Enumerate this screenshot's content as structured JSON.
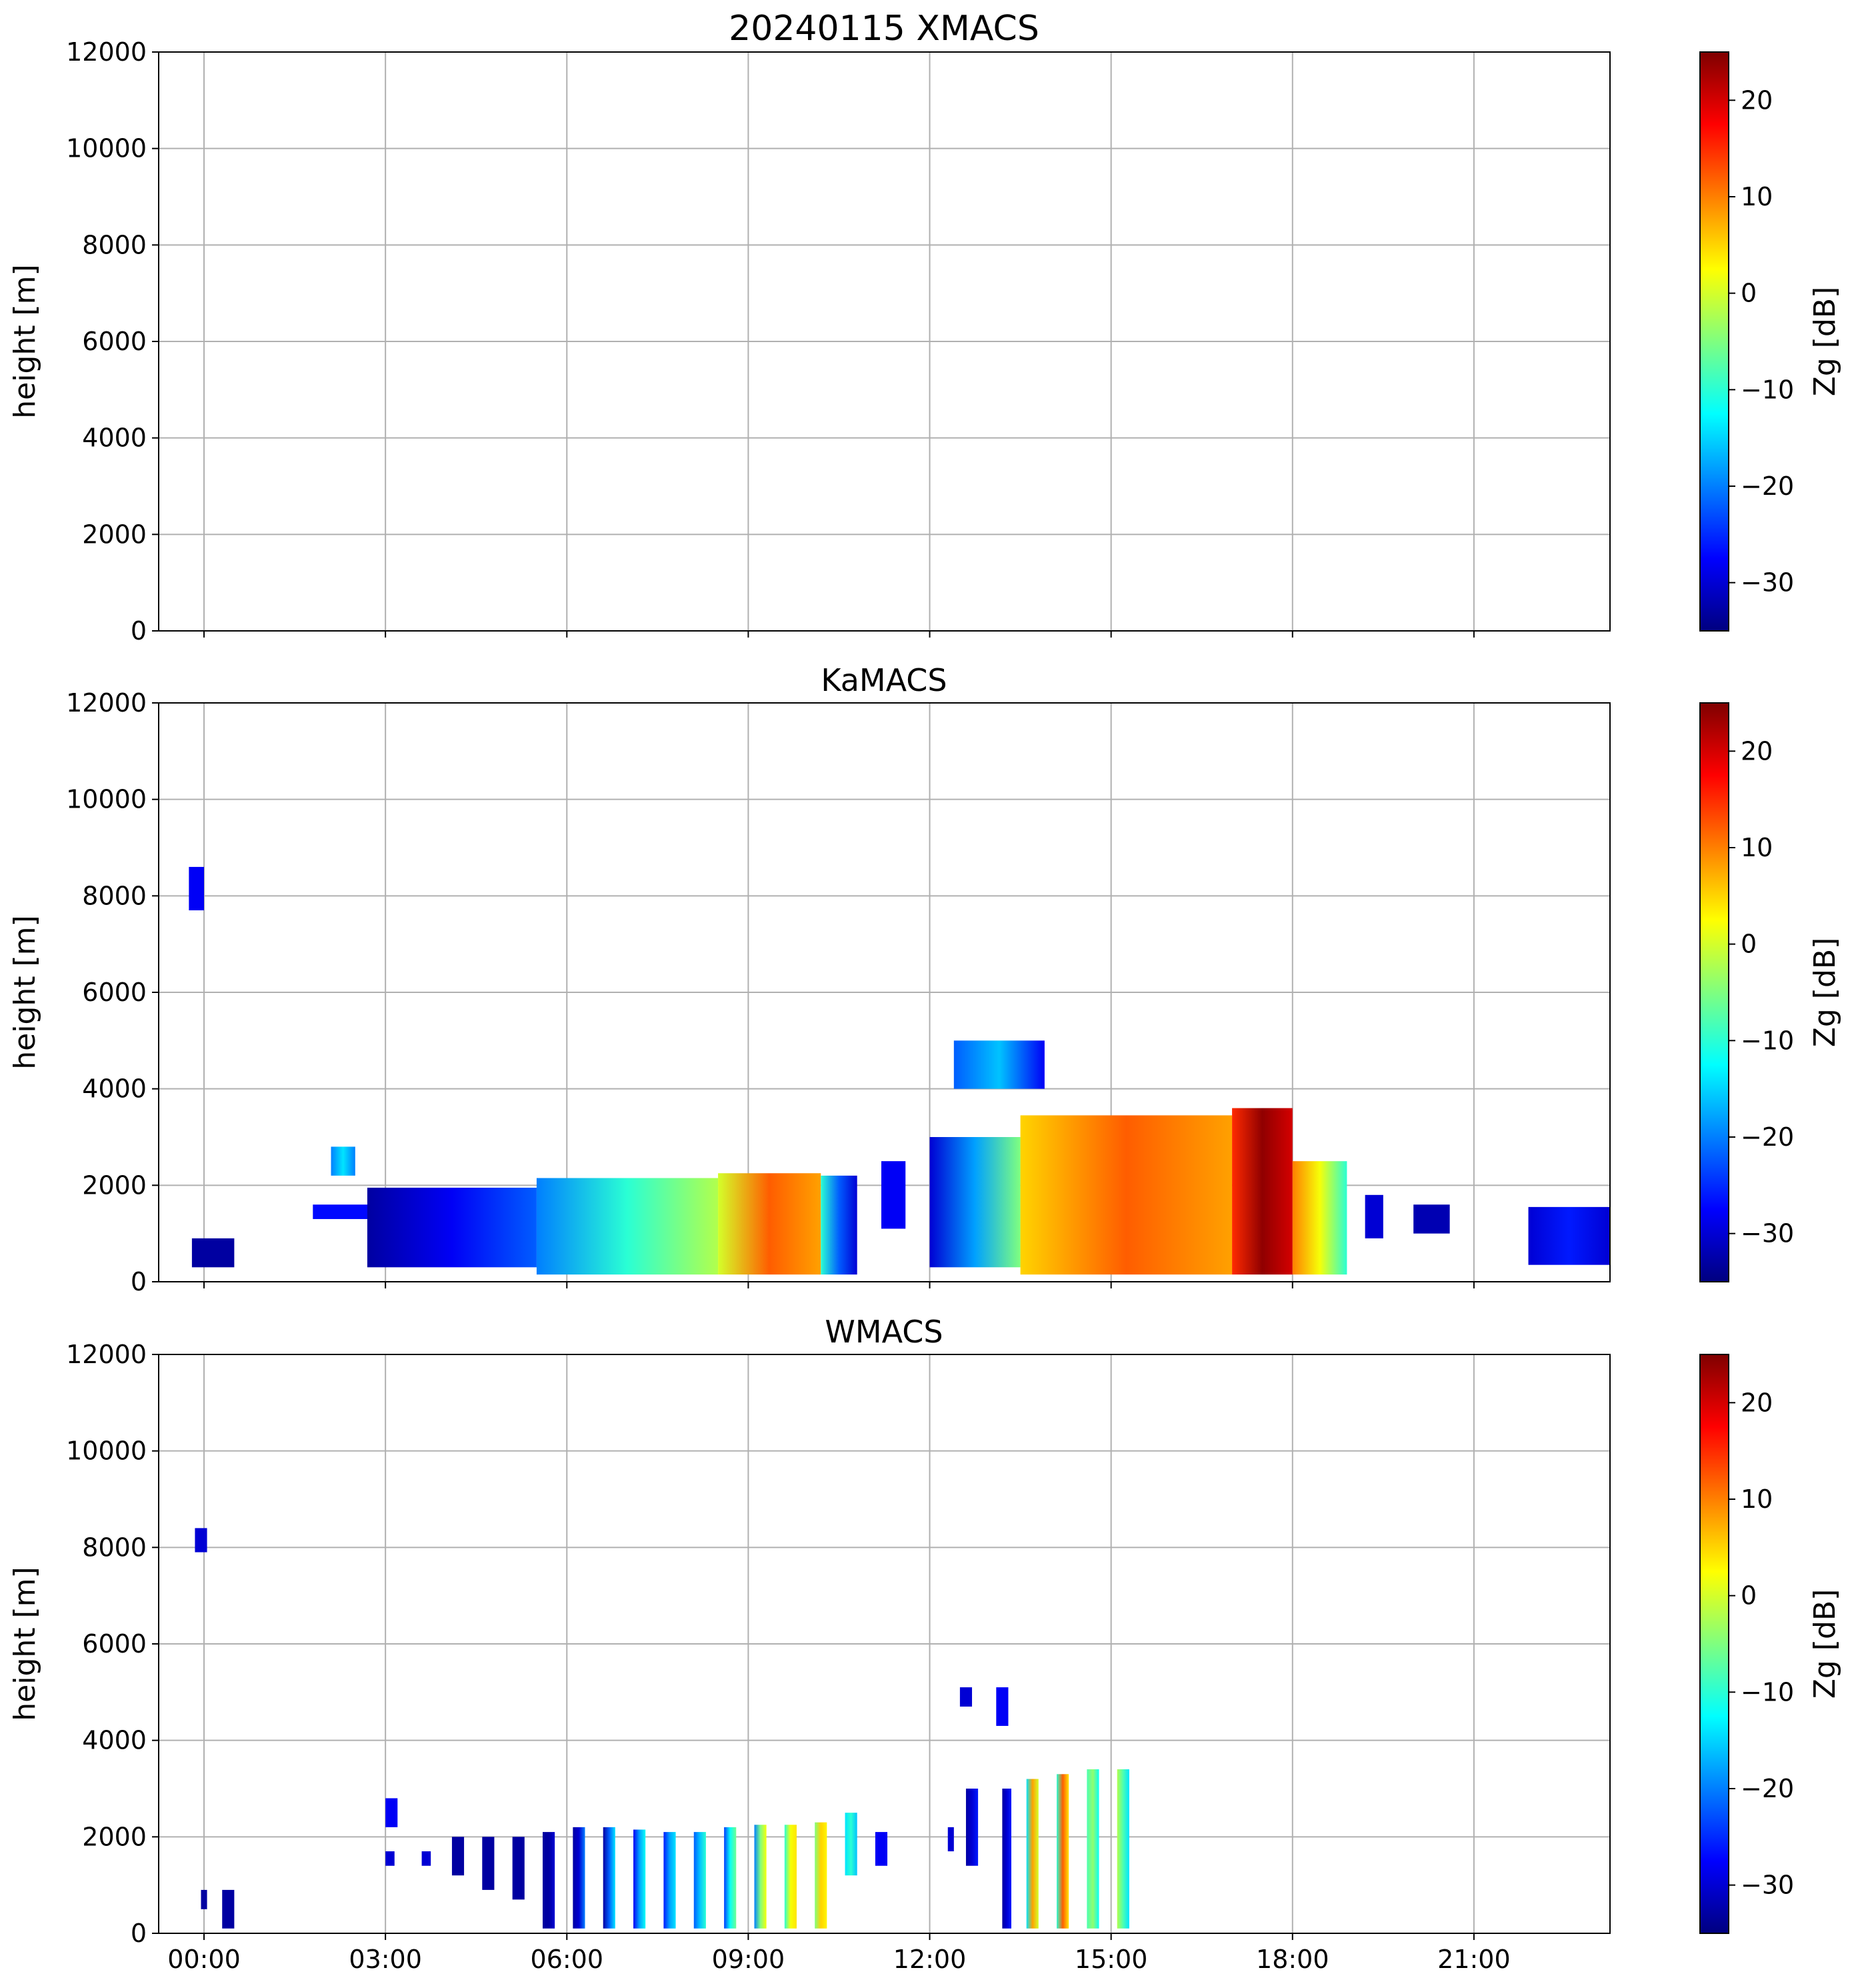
{
  "colors": {
    "jet": [
      "#00007f",
      "#0000ff",
      "#007fff",
      "#00ffff",
      "#7fff7f",
      "#ffff00",
      "#ff7f00",
      "#ff0000",
      "#7f0000"
    ],
    "grid": "#b0b0b0",
    "frame": "#000000"
  },
  "chart_data": [
    {
      "type": "heatmap",
      "title": "20240115 XMACS",
      "ylabel": "height [m]",
      "xlabel": "",
      "xlim_hours": [
        -0.75,
        23.25
      ],
      "ylim": [
        0,
        12000
      ],
      "yticks": [
        {
          "value": 0,
          "label": "0"
        },
        {
          "value": 2000,
          "label": "2000"
        },
        {
          "value": 4000,
          "label": "4000"
        },
        {
          "value": 6000,
          "label": "6000"
        },
        {
          "value": 8000,
          "label": "8000"
        },
        {
          "value": 10000,
          "label": "10000"
        },
        {
          "value": 12000,
          "label": "12000"
        }
      ],
      "xticks": [
        {
          "value": 0,
          "label": ""
        },
        {
          "value": 3,
          "label": ""
        },
        {
          "value": 6,
          "label": ""
        },
        {
          "value": 9,
          "label": ""
        },
        {
          "value": 12,
          "label": ""
        },
        {
          "value": 15,
          "label": ""
        },
        {
          "value": 18,
          "label": ""
        },
        {
          "value": 21,
          "label": ""
        }
      ],
      "grid": true,
      "colorbar": {
        "label": "Zg [dB]",
        "range": [
          -35,
          25
        ],
        "colormap": "jet",
        "ticks": [
          {
            "value": -30,
            "label": "−30"
          },
          {
            "value": -20,
            "label": "−20"
          },
          {
            "value": -10,
            "label": "−10"
          },
          {
            "value": 0,
            "label": "0"
          },
          {
            "value": 10,
            "label": "10"
          },
          {
            "value": 20,
            "label": "20"
          }
        ]
      },
      "echo_regions": []
    },
    {
      "type": "heatmap",
      "title": "KaMACS",
      "ylabel": "height [m]",
      "xlabel": "",
      "xlim_hours": [
        -0.75,
        23.25
      ],
      "ylim": [
        0,
        12000
      ],
      "yticks": [
        {
          "value": 0,
          "label": "0"
        },
        {
          "value": 2000,
          "label": "2000"
        },
        {
          "value": 4000,
          "label": "4000"
        },
        {
          "value": 6000,
          "label": "6000"
        },
        {
          "value": 8000,
          "label": "8000"
        },
        {
          "value": 10000,
          "label": "10000"
        },
        {
          "value": 12000,
          "label": "12000"
        }
      ],
      "xticks": [
        {
          "value": 0,
          "label": ""
        },
        {
          "value": 3,
          "label": ""
        },
        {
          "value": 6,
          "label": ""
        },
        {
          "value": 9,
          "label": ""
        },
        {
          "value": 12,
          "label": ""
        },
        {
          "value": 15,
          "label": ""
        },
        {
          "value": 18,
          "label": ""
        },
        {
          "value": 21,
          "label": ""
        }
      ],
      "grid": true,
      "colorbar": {
        "label": "Zg [dB]",
        "range": [
          -35,
          25
        ],
        "colormap": "jet",
        "ticks": [
          {
            "value": -30,
            "label": "−30"
          },
          {
            "value": -20,
            "label": "−20"
          },
          {
            "value": -10,
            "label": "−10"
          },
          {
            "value": 0,
            "label": "0"
          },
          {
            "value": 10,
            "label": "10"
          },
          {
            "value": 20,
            "label": "20"
          }
        ]
      },
      "echo_regions": [
        {
          "t0": -0.2,
          "t1": 0.5,
          "bottom": 300,
          "top": 900,
          "zg": [
            -33,
            -33,
            -33
          ]
        },
        {
          "t0": -0.25,
          "t1": 0.0,
          "bottom": 7700,
          "top": 8600,
          "zg": [
            -28,
            -28,
            -28
          ]
        },
        {
          "t0": 2.1,
          "t1": 2.5,
          "bottom": 2200,
          "top": 2800,
          "zg": [
            -20,
            -14,
            -20
          ]
        },
        {
          "t0": 1.8,
          "t1": 2.8,
          "bottom": 1300,
          "top": 1600,
          "zg": [
            -27,
            -27,
            -27
          ]
        },
        {
          "t0": 2.7,
          "t1": 5.5,
          "bottom": 300,
          "top": 1950,
          "zg": [
            -33,
            -28,
            -22
          ]
        },
        {
          "t0": 5.5,
          "t1": 8.5,
          "bottom": 150,
          "top": 2150,
          "zg": [
            -20,
            -10,
            -2
          ]
        },
        {
          "t0": 8.5,
          "t1": 10.2,
          "bottom": 150,
          "top": 2250,
          "zg": [
            0,
            12,
            8
          ]
        },
        {
          "t0": 10.2,
          "t1": 10.8,
          "bottom": 150,
          "top": 2200,
          "zg": [
            -10,
            -22,
            -30
          ]
        },
        {
          "t0": 11.2,
          "t1": 11.6,
          "bottom": 1100,
          "top": 2500,
          "zg": [
            -28,
            -28,
            -28
          ]
        },
        {
          "t0": 12.0,
          "t1": 13.5,
          "bottom": 300,
          "top": 3000,
          "zg": [
            -30,
            -18,
            -5
          ]
        },
        {
          "t0": 12.4,
          "t1": 13.9,
          "bottom": 4000,
          "top": 5000,
          "zg": [
            -22,
            -16,
            -28
          ]
        },
        {
          "t0": 13.5,
          "t1": 17.0,
          "bottom": 150,
          "top": 3450,
          "zg": [
            5,
            12,
            8
          ]
        },
        {
          "t0": 17.0,
          "t1": 18.0,
          "bottom": 150,
          "top": 3600,
          "zg": [
            15,
            24,
            20
          ]
        },
        {
          "t0": 18.0,
          "t1": 18.9,
          "bottom": 150,
          "top": 2500,
          "zg": [
            10,
            2,
            -10
          ]
        },
        {
          "t0": 19.2,
          "t1": 19.5,
          "bottom": 900,
          "top": 1800,
          "zg": [
            -30,
            -30,
            -30
          ]
        },
        {
          "t0": 20.0,
          "t1": 20.6,
          "bottom": 1000,
          "top": 1600,
          "zg": [
            -32,
            -32,
            -32
          ]
        },
        {
          "t0": 21.9,
          "t1": 23.25,
          "bottom": 350,
          "top": 1550,
          "zg": [
            -30,
            -26,
            -30
          ]
        }
      ]
    },
    {
      "type": "heatmap",
      "title": "WMACS",
      "ylabel": "height [m]",
      "xlabel": "",
      "xlim_hours": [
        -0.75,
        23.25
      ],
      "ylim": [
        0,
        12000
      ],
      "yticks": [
        {
          "value": 0,
          "label": "0"
        },
        {
          "value": 2000,
          "label": "2000"
        },
        {
          "value": 4000,
          "label": "4000"
        },
        {
          "value": 6000,
          "label": "6000"
        },
        {
          "value": 8000,
          "label": "8000"
        },
        {
          "value": 10000,
          "label": "10000"
        },
        {
          "value": 12000,
          "label": "12000"
        }
      ],
      "xticks": [
        {
          "value": 0,
          "label": "00:00"
        },
        {
          "value": 3,
          "label": "03:00"
        },
        {
          "value": 6,
          "label": "06:00"
        },
        {
          "value": 9,
          "label": "09:00"
        },
        {
          "value": 12,
          "label": "12:00"
        },
        {
          "value": 15,
          "label": "15:00"
        },
        {
          "value": 18,
          "label": "18:00"
        },
        {
          "value": 21,
          "label": "21:00"
        }
      ],
      "grid": true,
      "colorbar": {
        "label": "Zg [dB]",
        "range": [
          -35,
          25
        ],
        "colormap": "jet",
        "ticks": [
          {
            "value": -30,
            "label": "−30"
          },
          {
            "value": -20,
            "label": "−20"
          },
          {
            "value": -10,
            "label": "−10"
          },
          {
            "value": 0,
            "label": "0"
          },
          {
            "value": 10,
            "label": "10"
          },
          {
            "value": 20,
            "label": "20"
          }
        ]
      },
      "echo_regions": [
        {
          "t0": -0.05,
          "t1": 0.05,
          "bottom": 500,
          "top": 900,
          "zg": [
            -33,
            -33,
            -33
          ]
        },
        {
          "t0": 0.3,
          "t1": 0.5,
          "bottom": 100,
          "top": 900,
          "zg": [
            -33,
            -33,
            -33
          ]
        },
        {
          "t0": -0.15,
          "t1": 0.05,
          "bottom": 7900,
          "top": 8400,
          "zg": [
            -30,
            -30,
            -30
          ]
        },
        {
          "t0": 3.0,
          "t1": 3.2,
          "bottom": 2200,
          "top": 2800,
          "zg": [
            -28,
            -28,
            -28
          ]
        },
        {
          "t0": 3.0,
          "t1": 3.15,
          "bottom": 1400,
          "top": 1700,
          "zg": [
            -30,
            -30,
            -30
          ]
        },
        {
          "t0": 3.6,
          "t1": 3.75,
          "bottom": 1400,
          "top": 1700,
          "zg": [
            -30,
            -30,
            -30
          ]
        },
        {
          "t0": 4.1,
          "t1": 4.3,
          "bottom": 1200,
          "top": 2000,
          "zg": [
            -33,
            -33,
            -33
          ]
        },
        {
          "t0": 4.6,
          "t1": 4.8,
          "bottom": 900,
          "top": 2000,
          "zg": [
            -33,
            -33,
            -33
          ]
        },
        {
          "t0": 5.1,
          "t1": 5.3,
          "bottom": 700,
          "top": 2000,
          "zg": [
            -33,
            -33,
            -33
          ]
        },
        {
          "t0": 5.6,
          "t1": 5.8,
          "bottom": 100,
          "top": 2100,
          "zg": [
            -33,
            -33,
            -30
          ]
        },
        {
          "t0": 6.1,
          "t1": 6.3,
          "bottom": 100,
          "top": 2200,
          "zg": [
            -33,
            -30,
            -20
          ]
        },
        {
          "t0": 6.6,
          "t1": 6.8,
          "bottom": 100,
          "top": 2200,
          "zg": [
            -33,
            -22,
            -14
          ]
        },
        {
          "t0": 7.1,
          "t1": 7.3,
          "bottom": 100,
          "top": 2150,
          "zg": [
            -28,
            -18,
            -12
          ]
        },
        {
          "t0": 7.6,
          "t1": 7.8,
          "bottom": 100,
          "top": 2100,
          "zg": [
            -26,
            -18,
            -14
          ]
        },
        {
          "t0": 8.1,
          "t1": 8.3,
          "bottom": 100,
          "top": 2100,
          "zg": [
            -22,
            -16,
            -10
          ]
        },
        {
          "t0": 8.6,
          "t1": 8.8,
          "bottom": 100,
          "top": 2200,
          "zg": [
            -24,
            -12,
            -6
          ]
        },
        {
          "t0": 9.1,
          "t1": 9.3,
          "bottom": 100,
          "top": 2250,
          "zg": [
            -20,
            -5,
            2
          ]
        },
        {
          "t0": 9.6,
          "t1": 9.8,
          "bottom": 100,
          "top": 2250,
          "zg": [
            -10,
            2,
            4
          ]
        },
        {
          "t0": 10.1,
          "t1": 10.3,
          "bottom": 100,
          "top": 2300,
          "zg": [
            -5,
            5,
            3
          ]
        },
        {
          "t0": 10.6,
          "t1": 10.8,
          "bottom": 1200,
          "top": 2500,
          "zg": [
            -14,
            -10,
            -16
          ]
        },
        {
          "t0": 11.1,
          "t1": 11.3,
          "bottom": 1400,
          "top": 2100,
          "zg": [
            -28,
            -28,
            -28
          ]
        },
        {
          "t0": 12.3,
          "t1": 12.4,
          "bottom": 1700,
          "top": 2200,
          "zg": [
            -30,
            -30,
            -30
          ]
        },
        {
          "t0": 12.6,
          "t1": 12.8,
          "bottom": 1400,
          "top": 3000,
          "zg": [
            -33,
            -30,
            -26
          ]
        },
        {
          "t0": 12.5,
          "t1": 12.7,
          "bottom": 4700,
          "top": 5100,
          "zg": [
            -30,
            -30,
            -30
          ]
        },
        {
          "t0": 13.1,
          "t1": 13.3,
          "bottom": 4300,
          "top": 5100,
          "zg": [
            -28,
            -28,
            -28
          ]
        },
        {
          "t0": 13.2,
          "t1": 13.35,
          "bottom": 100,
          "top": 3000,
          "zg": [
            -33,
            -30,
            -26
          ]
        },
        {
          "t0": 13.6,
          "t1": 13.8,
          "bottom": 100,
          "top": 3200,
          "zg": [
            -14,
            8,
            0
          ]
        },
        {
          "t0": 14.1,
          "t1": 14.3,
          "bottom": 100,
          "top": 3300,
          "zg": [
            -10,
            12,
            4
          ]
        },
        {
          "t0": 14.6,
          "t1": 14.8,
          "bottom": 100,
          "top": 3400,
          "zg": [
            -8,
            -4,
            -12
          ]
        },
        {
          "t0": 15.1,
          "t1": 15.3,
          "bottom": 100,
          "top": 3400,
          "zg": [
            -2,
            -8,
            -14
          ]
        }
      ]
    }
  ]
}
